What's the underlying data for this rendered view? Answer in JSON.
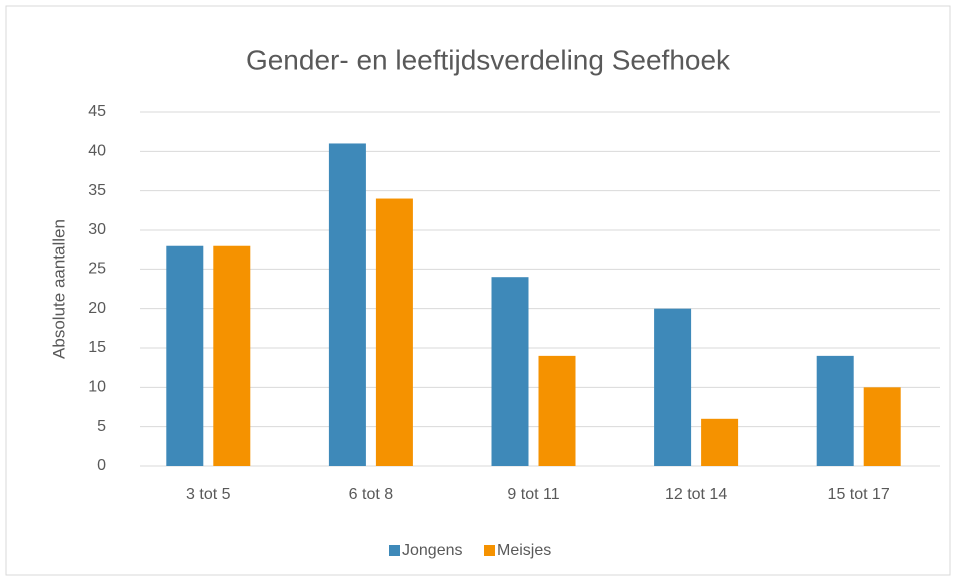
{
  "chart_data": {
    "type": "bar",
    "title": "Gender- en leeftijdsverdeling Seefhoek",
    "y_label": "Absolute aantallen",
    "categories": [
      "3 tot 5",
      "6 tot 8",
      "9 tot 11",
      "12 tot 14",
      "15 tot 17"
    ],
    "series": [
      {
        "name": "Jongens",
        "color": "#3e89b9",
        "values": [
          28,
          41,
          24,
          20,
          14
        ]
      },
      {
        "name": "Meisjes",
        "color": "#f59200",
        "values": [
          28,
          34,
          14,
          6,
          10
        ]
      }
    ],
    "ylim": [
      0,
      45
    ],
    "yticks": [
      0,
      5,
      10,
      15,
      20,
      25,
      30,
      35,
      40,
      45
    ],
    "grid": true,
    "legend": "bottom"
  }
}
